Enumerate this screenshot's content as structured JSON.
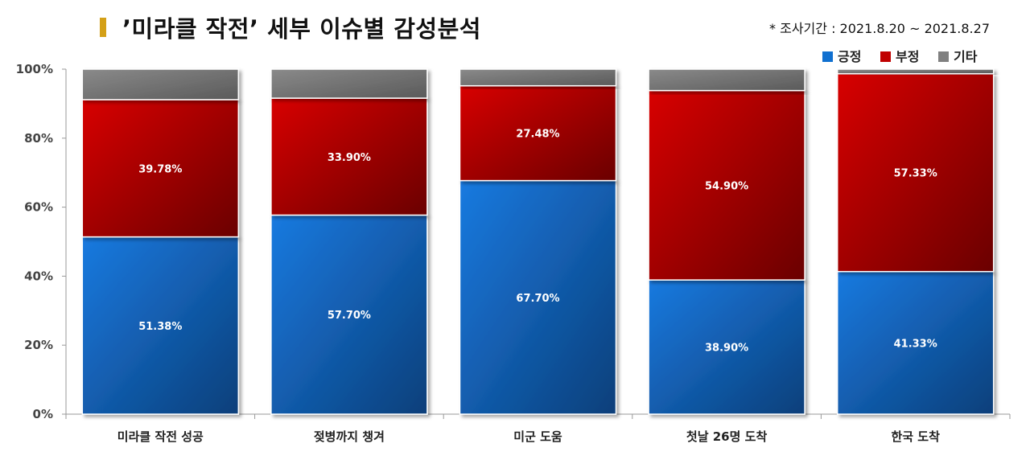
{
  "header": {
    "title": "’미라클 작전’ 세부 이슈별 감성분석",
    "period": "* 조사기간 : 2021.8.20 ~ 2021.8.27",
    "accent_color": "#d4a017"
  },
  "chart_data": {
    "type": "bar",
    "stacked": true,
    "title": "’미라클 작전’ 세부 이슈별 감성분석",
    "xlabel": "",
    "ylabel": "",
    "ylim": [
      0,
      100
    ],
    "yticks": [
      "0%",
      "20%",
      "40%",
      "60%",
      "80%",
      "100%"
    ],
    "categories": [
      "미라클 작전 성공",
      "젖병까지 챙겨",
      "미군 도움",
      "첫날 26명 도착",
      "한국 도착"
    ],
    "series": [
      {
        "name": "긍정",
        "color": "#1070d0",
        "values": [
          51.38,
          57.7,
          67.7,
          38.9,
          41.33
        ],
        "labels": [
          "51.38%",
          "57.70%",
          "67.70%",
          "38.90%",
          "41.33%"
        ]
      },
      {
        "name": "부정",
        "color": "#c00000",
        "values": [
          39.78,
          33.9,
          27.48,
          54.9,
          57.33
        ],
        "labels": [
          "39.78%",
          "33.90%",
          "27.48%",
          "54.90%",
          "57.33%"
        ]
      },
      {
        "name": "기타",
        "color": "#808080",
        "values": [
          8.84,
          8.4,
          4.82,
          6.2,
          1.34
        ]
      }
    ],
    "legend_position": "top-right",
    "grid": false
  }
}
